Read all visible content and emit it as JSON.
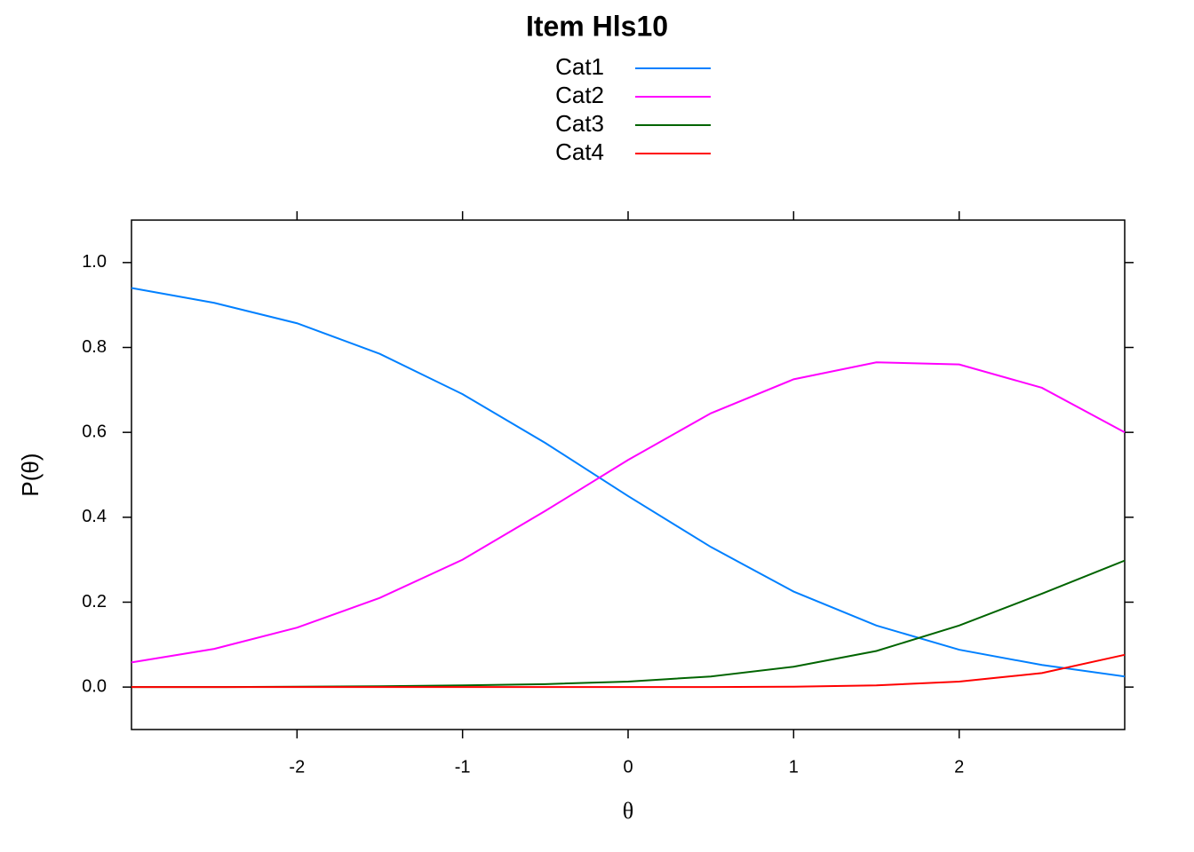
{
  "chart_data": {
    "type": "line",
    "title": "Item Hls10",
    "x_label": "θ",
    "y_label": "P(θ)",
    "x": [
      -3,
      -2.5,
      -2,
      -1.5,
      -1,
      -0.5,
      0,
      0.5,
      1,
      1.5,
      2,
      2.5,
      3
    ],
    "series": [
      {
        "name": "Cat1",
        "color": "#0080ff",
        "values": [
          0.94,
          0.905,
          0.857,
          0.785,
          0.69,
          0.575,
          0.45,
          0.33,
          0.225,
          0.145,
          0.088,
          0.052,
          0.025
        ]
      },
      {
        "name": "Cat2",
        "color": "#ff00ff",
        "values": [
          0.058,
          0.09,
          0.14,
          0.21,
          0.3,
          0.415,
          0.535,
          0.645,
          0.725,
          0.765,
          0.76,
          0.705,
          0.6
        ]
      },
      {
        "name": "Cat3",
        "color": "#006400",
        "values": [
          0,
          0,
          0.001,
          0.002,
          0.004,
          0.007,
          0.013,
          0.025,
          0.048,
          0.085,
          0.145,
          0.22,
          0.298
        ]
      },
      {
        "name": "Cat4",
        "color": "#ff0000",
        "values": [
          0,
          0,
          0,
          0,
          0,
          0,
          0,
          0,
          0.001,
          0.004,
          0.013,
          0.033,
          0.076
        ]
      }
    ],
    "xlim": [
      -3,
      3
    ],
    "xticks": [
      -2,
      -1,
      0,
      1,
      2
    ],
    "ylim": [
      -0.1,
      1.1
    ],
    "yticks": [
      {
        "value": 0,
        "label": "0.0"
      },
      {
        "value": 0.2,
        "label": "0.2"
      },
      {
        "value": 0.4,
        "label": "0.4"
      },
      {
        "value": 0.6,
        "label": "0.6"
      },
      {
        "value": 0.8,
        "label": "0.8"
      },
      {
        "value": 1,
        "label": "1.0"
      }
    ],
    "legend": "top"
  }
}
